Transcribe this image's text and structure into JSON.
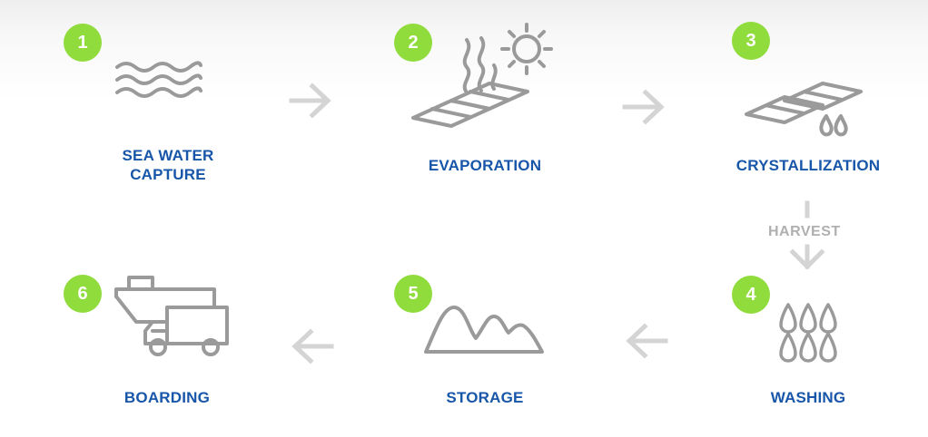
{
  "colors": {
    "badge": "#8fdc3c",
    "label": "#1756a8",
    "icon": "#9a9a9a",
    "arrow": "#d4d4d4"
  },
  "steps": [
    {
      "number": "1",
      "label_line1": "SEA WATER",
      "label_line2": "CAPTURE",
      "icon": "waves-icon"
    },
    {
      "number": "2",
      "label": "EVAPORATION",
      "icon": "evaporation-sun-icon"
    },
    {
      "number": "3",
      "label": "CRYSTALLIZATION",
      "icon": "crystallization-pans-icon"
    },
    {
      "number": "4",
      "label": "WASHING",
      "icon": "water-drops-icon"
    },
    {
      "number": "5",
      "label": "STORAGE",
      "icon": "salt-mounds-icon"
    },
    {
      "number": "6",
      "label": "BOARDING",
      "icon": "ship-truck-icon"
    }
  ],
  "harvest_label": "HARVEST"
}
